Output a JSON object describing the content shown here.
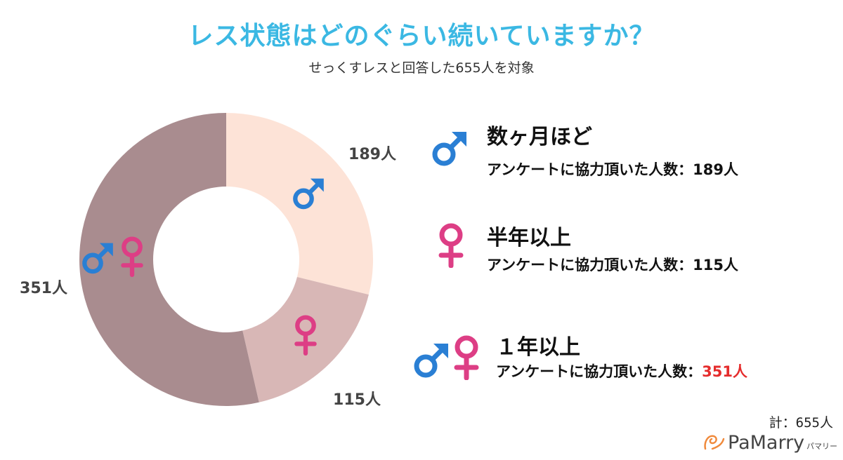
{
  "title": "レス状態はどのぐらい続いていますか？",
  "subtitle": "せっくすレスと回答した655人を対象",
  "colors": {
    "title": "#3bb8e3",
    "male": "#2a7fd4",
    "female": "#dd3e85",
    "slice_months": "#fde3d7",
    "slice_half_year": "#d8b7b6",
    "slice_one_year": "#a98c8f",
    "highlight": "#e52c2c"
  },
  "chart_data": {
    "type": "pie",
    "variant": "donut",
    "title": "レス状態はどのぐらい続いていますか？",
    "categories": [
      "数ヶ月ほど",
      "半年以上",
      "１年以上"
    ],
    "values": [
      189,
      115,
      351
    ],
    "data_labels": [
      "189人",
      "115人",
      "351人"
    ],
    "total": 655,
    "legend_placement": "right"
  },
  "legend": [
    {
      "label": "数ヶ月ほど",
      "prefix": "アンケートに協力頂いた人数：",
      "count": "189人",
      "icons": [
        "male-icon"
      ]
    },
    {
      "label": "半年以上",
      "prefix": "アンケートに協力頂いた人数：",
      "count": "115人",
      "icons": [
        "female-icon"
      ]
    },
    {
      "label": "１年以上",
      "prefix": "アンケートに協力頂いた人数：",
      "count": "351人",
      "icons": [
        "male-icon",
        "female-icon"
      ]
    }
  ],
  "total_label": "計：655人",
  "brand": {
    "name": "PaMarry",
    "kana": "パマリー"
  }
}
